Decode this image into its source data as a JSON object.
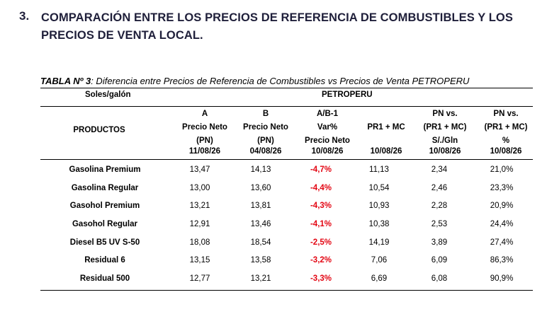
{
  "section": {
    "number": "3.",
    "title": "COMPARACIÓN ENTRE LOS PRECIOS DE REFERENCIA DE COMBUSTIBLES Y LOS PRECIOS DE VENTA LOCAL."
  },
  "table": {
    "caption_label": "TABLA Nº 3",
    "caption_text": ": Diferencia entre Precios de Referencia de Combustibles vs Precios de Venta PETROPERU",
    "units": "Soles/galón",
    "group": "PETROPERU",
    "products_header": "PRODUCTOS",
    "columns": [
      {
        "lines": [
          "A",
          "Precio Neto",
          "(PN)"
        ],
        "date": "11/08/26"
      },
      {
        "lines": [
          "B",
          "Precio Neto",
          "(PN)"
        ],
        "date": "04/08/26"
      },
      {
        "lines": [
          "A/B-1",
          "Var%",
          "Precio Neto"
        ],
        "date": "10/08/26"
      },
      {
        "lines": [
          "",
          "PR1 + MC",
          ""
        ],
        "date": "10/08/26"
      },
      {
        "lines": [
          "PN  vs.",
          "(PR1 + MC)",
          "S/./Gln"
        ],
        "date": "10/08/26"
      },
      {
        "lines": [
          "PN  vs.",
          "(PR1 + MC)",
          "%"
        ],
        "date": "10/08/26"
      }
    ],
    "rows": [
      {
        "product": "Gasolina Premium",
        "values": [
          "13,47",
          "14,13",
          "-4,7%",
          "11,13",
          "2,34",
          "21,0%"
        ]
      },
      {
        "product": "Gasolina Regular",
        "values": [
          "13,00",
          "13,60",
          "-4,4%",
          "10,54",
          "2,46",
          "23,3%"
        ]
      },
      {
        "product": "Gasohol Premium",
        "values": [
          "13,21",
          "13,81",
          "-4,3%",
          "10,93",
          "2,28",
          "20,9%"
        ]
      },
      {
        "product": "Gasohol Regular",
        "values": [
          "12,91",
          "13,46",
          "-4,1%",
          "10,38",
          "2,53",
          "24,4%"
        ]
      },
      {
        "product": "Diesel B5 UV  S-50",
        "values": [
          "18,08",
          "18,54",
          "-2,5%",
          "14,19",
          "3,89",
          "27,4%"
        ]
      },
      {
        "product": "Residual 6",
        "values": [
          "13,15",
          "13,58",
          "-3,2%",
          "7,06",
          "6,09",
          "86,3%"
        ]
      },
      {
        "product": "Residual 500",
        "values": [
          "12,77",
          "13,21",
          "-3,3%",
          "6,69",
          "6,08",
          "90,9%"
        ]
      }
    ],
    "negative_color": "#e30613"
  }
}
